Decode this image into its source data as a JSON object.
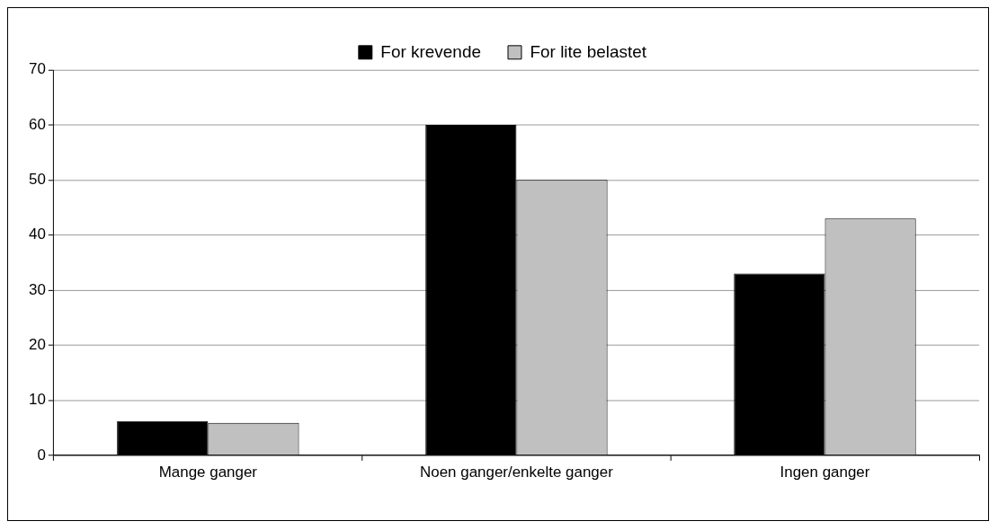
{
  "chart_data": {
    "type": "bar",
    "categories": [
      "Mange ganger",
      "Noen ganger/enkelte ganger",
      "Ingen ganger"
    ],
    "series": [
      {
        "name": "For krevende",
        "color": "#000000",
        "values": [
          6.2,
          60,
          33
        ]
      },
      {
        "name": "For lite belastet",
        "color": "#c0c0c0",
        "values": [
          5.9,
          50,
          43
        ]
      }
    ],
    "ylim": [
      0,
      70
    ],
    "yticks": [
      0,
      10,
      20,
      30,
      40,
      50,
      60,
      70
    ],
    "grid": "y",
    "legend": "top"
  }
}
